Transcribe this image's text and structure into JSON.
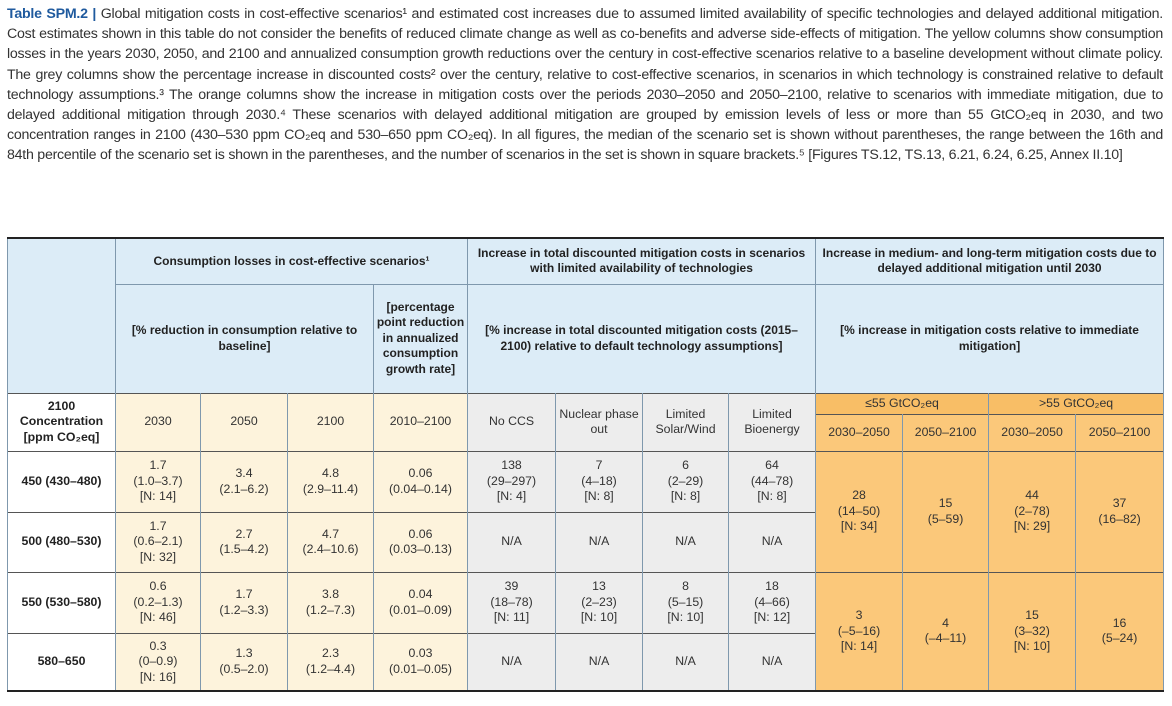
{
  "caption": {
    "label": "Table SPM.2 |",
    "text": "Global mitigation costs in cost-effective scenarios¹ and estimated cost increases due to assumed limited availability of specific technologies and delayed additional mitigation. Cost estimates shown in this table do not consider the benefits of reduced climate change as well as co-benefits and adverse side-effects of mitigation. The yellow columns show consumption losses in the years 2030, 2050, and 2100 and annualized consumption growth reductions over the century in cost-effective scenarios relative to a baseline development without climate policy. The grey columns show the percentage increase in discounted costs² over the century, relative to cost-effective scenarios, in scenarios in which technology is constrained relative to default technology assumptions.³ The orange columns show the increase in mitigation costs over the periods 2030–2050 and 2050–2100, relative to scenarios with immediate mitigation, due to delayed additional mitigation through 2030.⁴ These scenarios with delayed additional mitigation are grouped by emission levels of less or more than 55 GtCO₂eq in 2030, and two concentration ranges in 2100 (430–530 ppm CO₂eq and 530–650 ppm CO₂eq). In all figures, the median of the scenario set is shown without parentheses, the range between the 16th and 84th percentile of the scenario set is shown in the parentheses, and the number of scenarios in the set is shown in square brackets.⁵ [Figures TS.12, TS.13, 6.21, 6.24, 6.25, Annex II.10]"
  },
  "table": {
    "groups": [
      {
        "title": "Consumption losses in cost-effective scenarios¹",
        "units": [
          "[% reduction in consumption relative to baseline]",
          "[percentage point reduction in annualized consumption growth rate]"
        ]
      },
      {
        "title": "Increase in total discounted mitigation costs in scenarios with limited availability of technologies",
        "units": [
          "[% increase in total discounted mitigation costs (2015–2100) relative to default technology assumptions]"
        ]
      },
      {
        "title": "Increase in medium- and long-term mitigation costs due to delayed additional mitigation until 2030",
        "units": [
          "[% increase in mitigation costs relative to immediate mitigation]"
        ]
      }
    ],
    "row_header": [
      "2100",
      "Concentration",
      "[ppm CO₂eq]"
    ],
    "columns": [
      "2030",
      "2050",
      "2100",
      "2010–2100",
      "No CCS",
      "Nuclear phase out",
      "Limited Solar/Wind",
      "Limited Bioenergy"
    ],
    "delay_groups": [
      "≤55 GtCO₂eq",
      ">55 GtCO₂eq"
    ],
    "delay_columns": [
      "2030–2050",
      "2050–2100",
      "2030–2050",
      "2050–2100"
    ],
    "rows": [
      {
        "label": "450 (430–480)",
        "cells": [
          [
            "1.7",
            "(1.0–3.7)",
            "[N: 14]"
          ],
          [
            "3.4",
            "(2.1–6.2)"
          ],
          [
            "4.8",
            "(2.9–11.4)"
          ],
          [
            "0.06",
            "(0.04–0.14)"
          ],
          [
            "138",
            "(29–297)",
            "[N: 4]"
          ],
          [
            "7",
            "(4–18)",
            "[N: 8]"
          ],
          [
            "6",
            "(2–29)",
            "[N: 8]"
          ],
          [
            "64",
            "(44–78)",
            "[N: 8]"
          ]
        ]
      },
      {
        "label": "500 (480–530)",
        "cells": [
          [
            "1.7",
            "(0.6–2.1)",
            "[N: 32]"
          ],
          [
            "2.7",
            "(1.5–4.2)"
          ],
          [
            "4.7",
            "(2.4–10.6)"
          ],
          [
            "0.06",
            "(0.03–0.13)"
          ],
          [
            "N/A"
          ],
          [
            "N/A"
          ],
          [
            "N/A"
          ],
          [
            "N/A"
          ]
        ]
      },
      {
        "label": "550 (530–580)",
        "cells": [
          [
            "0.6",
            "(0.2–1.3)",
            "[N: 46]"
          ],
          [
            "1.7",
            "(1.2–3.3)"
          ],
          [
            "3.8",
            "(1.2–7.3)"
          ],
          [
            "0.04",
            "(0.01–0.09)"
          ],
          [
            "39",
            "(18–78)",
            "[N: 11]"
          ],
          [
            "13",
            "(2–23)",
            "[N: 10]"
          ],
          [
            "8",
            "(5–15)",
            "[N: 10]"
          ],
          [
            "18",
            "(4–66)",
            "[N: 12]"
          ]
        ]
      },
      {
        "label": "580–650",
        "cells": [
          [
            "0.3",
            "(0–0.9)",
            "[N: 16]"
          ],
          [
            "1.3",
            "(0.5–2.0)"
          ],
          [
            "2.3",
            "(1.2–4.4)"
          ],
          [
            "0.03",
            "(0.01–0.05)"
          ],
          [
            "N/A"
          ],
          [
            "N/A"
          ],
          [
            "N/A"
          ],
          [
            "N/A"
          ]
        ]
      }
    ],
    "delay_rows": [
      [
        [
          "28",
          "(14–50)",
          "[N: 34]"
        ],
        [
          "15",
          "(5–59)"
        ],
        [
          "44",
          "(2–78)",
          "[N: 29]"
        ],
        [
          "37",
          "(16–82)"
        ]
      ],
      [
        [
          "3",
          "(–5–16)",
          "[N: 14]"
        ],
        [
          "4",
          "(–4–11)"
        ],
        [
          "15",
          "(3–32)",
          "[N: 10]"
        ],
        [
          "16",
          "(5–24)"
        ]
      ]
    ]
  }
}
